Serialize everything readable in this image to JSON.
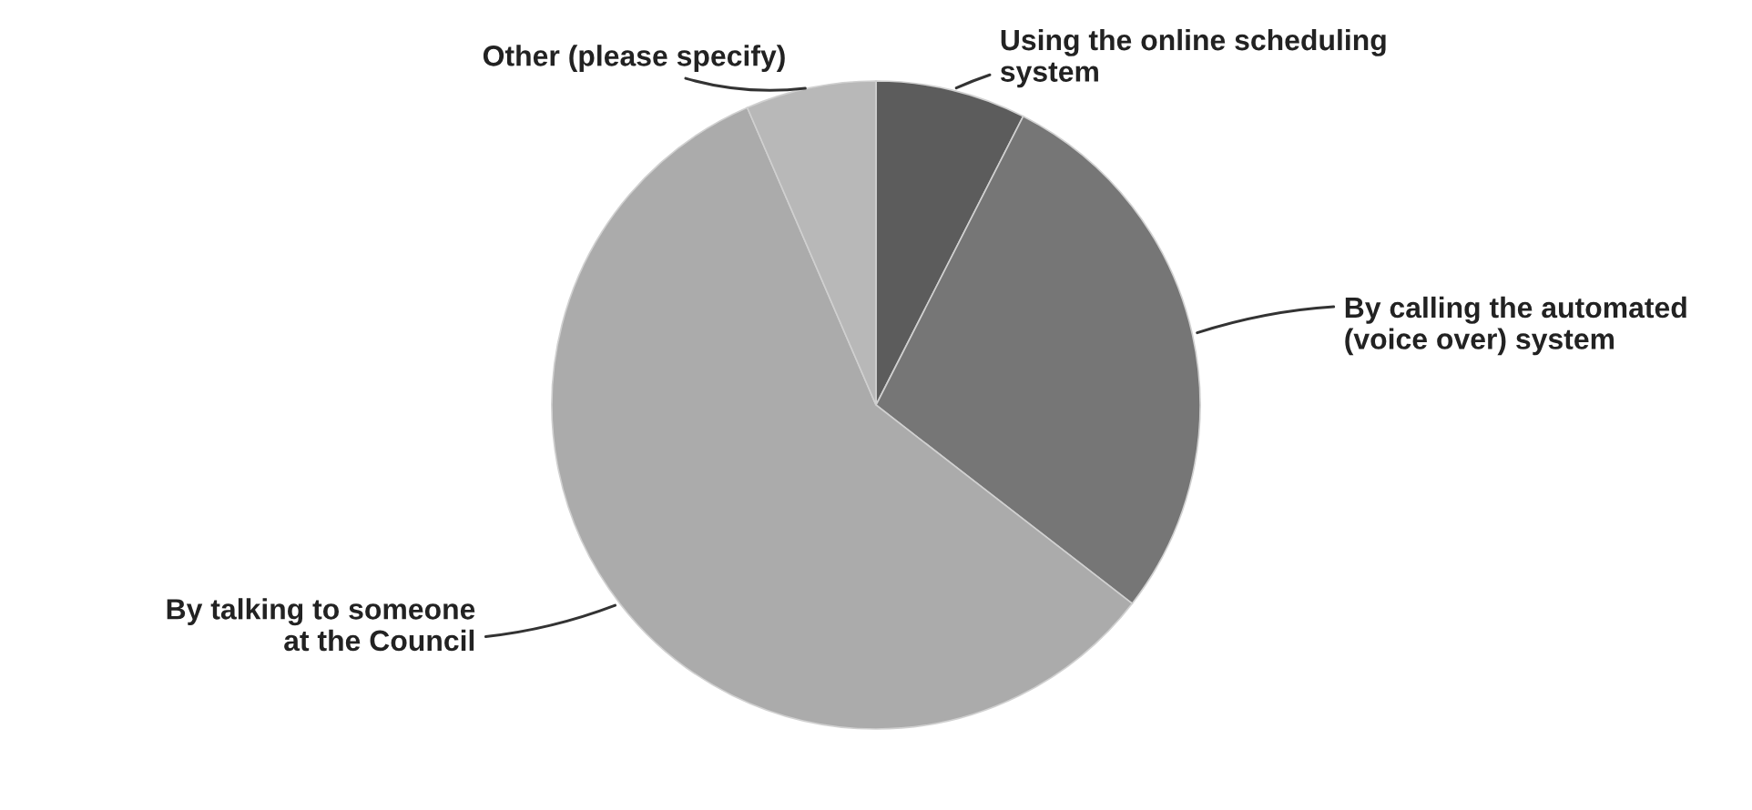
{
  "chart_data": {
    "type": "pie",
    "categories": [
      "Using the online scheduling\nsystem",
      "By calling the automated\n(voice over) system",
      "By talking to someone\nat the Council",
      "Other (please specify)"
    ],
    "values": [
      7.5,
      28,
      58,
      6.5
    ],
    "colors": [
      "#5c5c5c",
      "#767676",
      "#ababab",
      "#b8b8b8"
    ],
    "legend": false
  }
}
